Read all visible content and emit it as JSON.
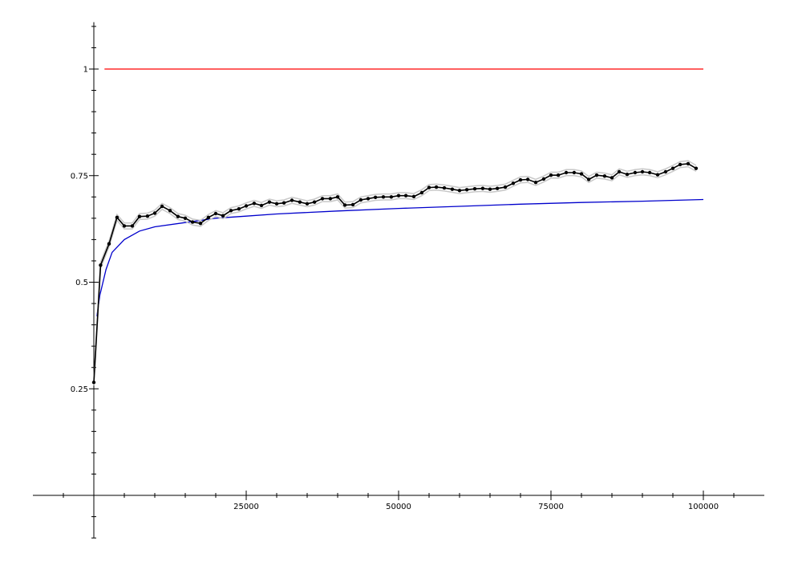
{
  "chart_data": {
    "type": "line",
    "title": "",
    "xlabel": "",
    "ylabel": "",
    "xlim": [
      -10000,
      110000
    ],
    "ylim": [
      -0.1,
      1.11
    ],
    "grid": false,
    "x_ticks": [
      25000,
      50000,
      75000,
      100000
    ],
    "x_tick_labels": [
      "25000",
      "50000",
      "75000",
      "100000"
    ],
    "y_ticks": [
      0.25,
      0.5,
      0.75,
      1
    ],
    "y_tick_labels": [
      "0.25",
      "0.5",
      "0.75",
      "1"
    ],
    "series": [
      {
        "style": "reference-line",
        "color": "#ff0000",
        "x": [
          1750,
          100000
        ],
        "y": [
          1.0,
          1.0
        ]
      },
      {
        "style": "smooth-curve",
        "color": "#0000cc",
        "x": [
          500,
          1000,
          2000,
          3000,
          5000,
          7500,
          10000,
          15000,
          20000,
          25000,
          30000,
          40000,
          50000,
          60000,
          70000,
          80000,
          90000,
          100000
        ],
        "y": [
          0.42,
          0.47,
          0.53,
          0.57,
          0.6,
          0.62,
          0.63,
          0.64,
          0.65,
          0.655,
          0.66,
          0.667,
          0.673,
          0.678,
          0.683,
          0.687,
          0.69,
          0.694
        ]
      },
      {
        "style": "markers-with-band",
        "color": "#000000",
        "band_color": "#c8c8c8",
        "band_halfwidth": 0.007,
        "x": [
          0,
          1100,
          2500,
          3800,
          5000,
          6300,
          7500,
          8800,
          10000,
          11200,
          12500,
          13800,
          15000,
          16200,
          17500,
          18800,
          20000,
          21200,
          22500,
          23800,
          25000,
          26300,
          27500,
          28800,
          30000,
          31200,
          32500,
          33800,
          35000,
          36200,
          37500,
          38800,
          40000,
          41200,
          42500,
          43800,
          45000,
          46200,
          47500,
          48800,
          50000,
          51200,
          52500,
          53800,
          55000,
          56200,
          57500,
          58800,
          60000,
          61200,
          62500,
          63800,
          65000,
          66200,
          67500,
          68800,
          70000,
          71200,
          72500,
          73800,
          75000,
          76200,
          77500,
          78800,
          80000,
          81200,
          82500,
          83800,
          85000,
          86200,
          87500,
          88800,
          90000,
          91200,
          92500,
          93800,
          95000,
          96200,
          97500,
          98800
        ],
        "y": [
          0.265,
          0.54,
          0.59,
          0.652,
          0.632,
          0.632,
          0.654,
          0.655,
          0.662,
          0.678,
          0.668,
          0.654,
          0.65,
          0.641,
          0.638,
          0.652,
          0.661,
          0.656,
          0.668,
          0.672,
          0.679,
          0.685,
          0.68,
          0.688,
          0.684,
          0.686,
          0.692,
          0.688,
          0.684,
          0.688,
          0.696,
          0.696,
          0.7,
          0.681,
          0.682,
          0.693,
          0.696,
          0.699,
          0.7,
          0.7,
          0.703,
          0.703,
          0.701,
          0.71,
          0.722,
          0.723,
          0.721,
          0.718,
          0.715,
          0.717,
          0.719,
          0.72,
          0.718,
          0.72,
          0.723,
          0.732,
          0.74,
          0.741,
          0.734,
          0.742,
          0.751,
          0.751,
          0.757,
          0.757,
          0.754,
          0.741,
          0.751,
          0.749,
          0.745,
          0.759,
          0.753,
          0.757,
          0.759,
          0.757,
          0.752,
          0.759,
          0.767,
          0.776,
          0.778,
          0.767
        ]
      }
    ]
  }
}
